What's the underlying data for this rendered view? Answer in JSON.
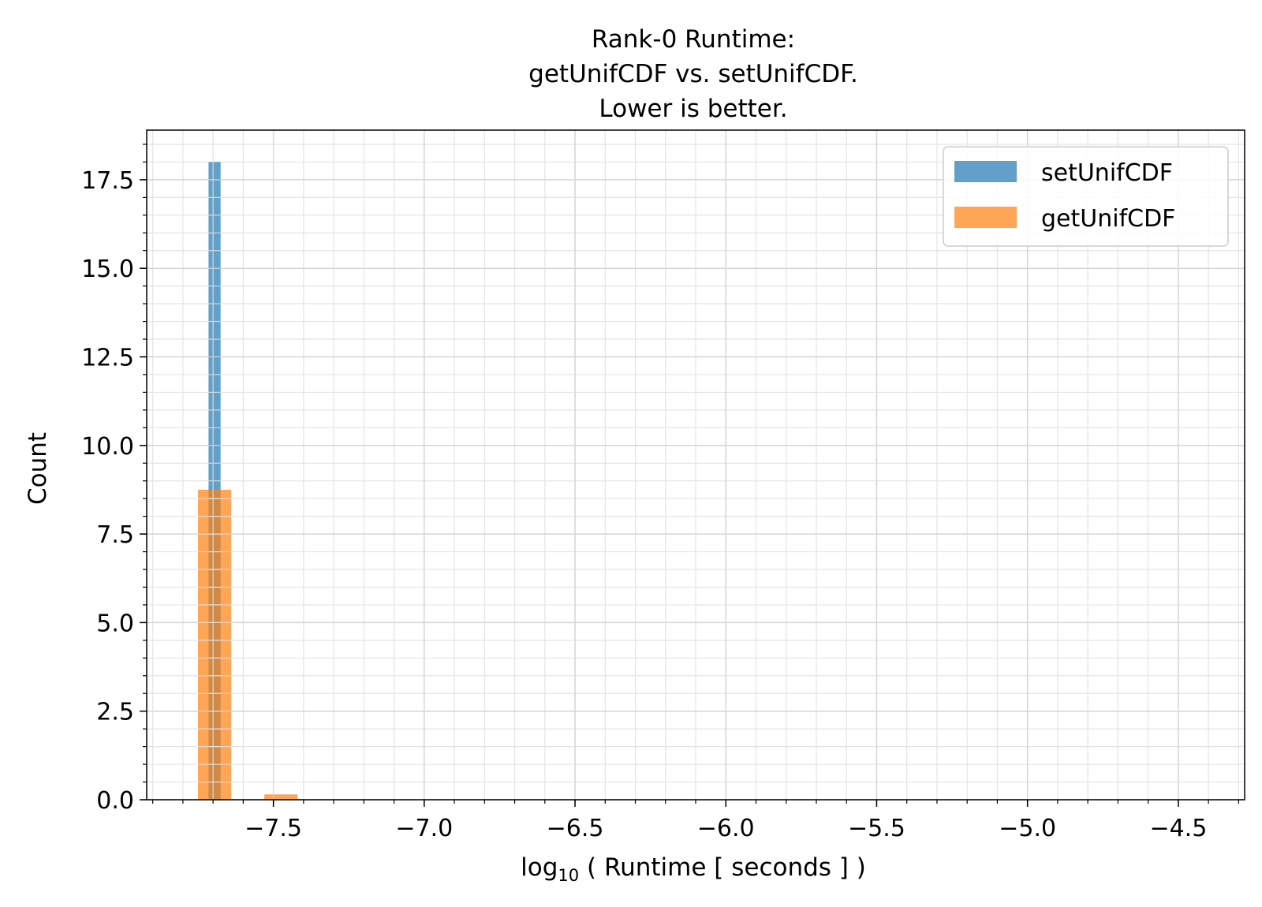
{
  "chart_data": {
    "type": "bar",
    "title_lines": [
      "Rank-0 Runtime:",
      "getUnifCDF vs. setUnifCDF.",
      "Lower is better."
    ],
    "xlabel_main": "log",
    "xlabel_sub": "10",
    "xlabel_rest": " ( Runtime [ seconds ] )",
    "ylabel": "Count",
    "xlim": [
      -7.92,
      -4.28
    ],
    "ylim": [
      0,
      18.9
    ],
    "x_ticks": [
      -7.5,
      -7.0,
      -6.5,
      -6.0,
      -5.5,
      -5.0,
      -4.5
    ],
    "x_tick_labels": [
      "−7.5",
      "−7.0",
      "−6.5",
      "−6.0",
      "−5.5",
      "−5.0",
      "−4.5"
    ],
    "y_ticks": [
      0,
      2.5,
      5,
      7.5,
      10,
      12.5,
      15,
      17.5
    ],
    "y_tick_labels": [
      "0.0",
      "2.5",
      "5.0",
      "7.5",
      "10.0",
      "12.5",
      "15.0",
      "17.5"
    ],
    "grid": true,
    "legend_position": "top-right",
    "series": [
      {
        "name": "setUnifCDF",
        "color": "#1f77b4",
        "opacity": 0.7,
        "bins": [
          {
            "x0": -7.715,
            "x1": -7.675,
            "value": 18
          }
        ]
      },
      {
        "name": "getUnifCDF",
        "color": "#ff7f0e",
        "opacity": 0.7,
        "bins": [
          {
            "x0": -7.75,
            "x1": -7.64,
            "value": 8.75
          },
          {
            "x0": -7.53,
            "x1": -7.42,
            "value": 0.15
          }
        ]
      }
    ]
  }
}
